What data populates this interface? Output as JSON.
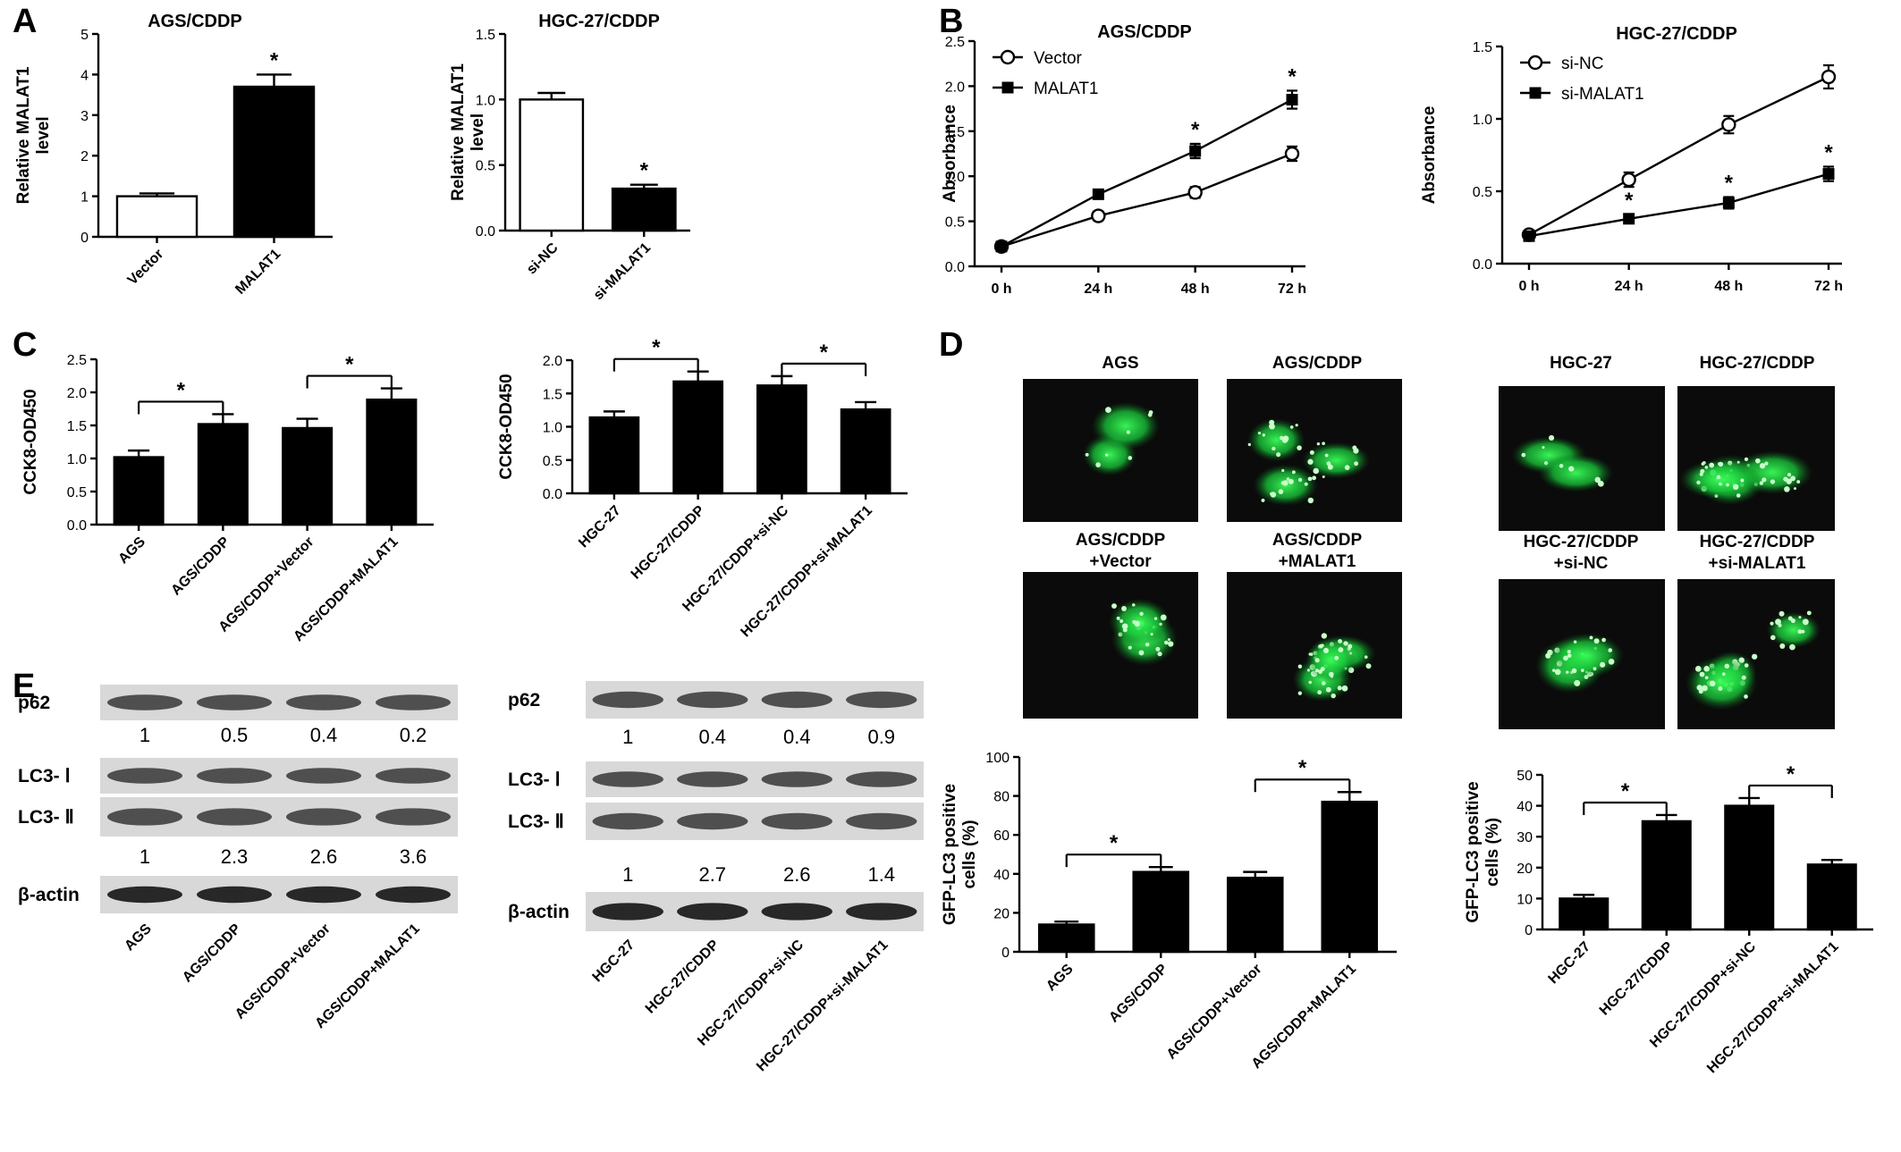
{
  "panel_letters": [
    "A",
    "B",
    "C",
    "D",
    "E"
  ],
  "chart_data": [
    {
      "id": "A1",
      "type": "bar",
      "title": "AGS/CDDP",
      "ylabel": "Relative MALAT1 level",
      "xlabel": "",
      "categories": [
        "Vector",
        "MALAT1"
      ],
      "values": [
        1.0,
        3.7
      ],
      "errors": [
        0.07,
        0.3
      ],
      "fills": [
        "#ffffff",
        "#000000"
      ],
      "ylim": [
        0,
        5
      ],
      "yticks": [
        "0",
        "1",
        "2",
        "3",
        "4",
        "5"
      ],
      "star_label": "*",
      "stars": [
        1
      ]
    },
    {
      "id": "A2",
      "type": "bar",
      "title": "HGC-27/CDDP",
      "ylabel": "Relative MALAT1 level",
      "xlabel": "",
      "categories": [
        "si-NC",
        "si-MALAT1"
      ],
      "values": [
        1.0,
        0.32
      ],
      "errors": [
        0.05,
        0.03
      ],
      "fills": [
        "#ffffff",
        "#000000"
      ],
      "ylim": [
        0,
        1.5
      ],
      "yticks": [
        "0.0",
        "0.5",
        "1.0",
        "1.5"
      ],
      "star_label": "*",
      "stars": [
        1
      ]
    },
    {
      "id": "B1",
      "type": "line",
      "title": "AGS/CDDP",
      "ylabel": "Absorbance",
      "xlabel": "",
      "categories": [
        "0 h",
        "24 h",
        "48 h",
        "72 h"
      ],
      "series": [
        {
          "name": "Vector",
          "values": [
            0.22,
            0.56,
            0.82,
            1.25
          ],
          "errors": [
            0.03,
            0.05,
            0.06,
            0.08
          ]
        },
        {
          "name": "MALAT1",
          "values": [
            0.22,
            0.8,
            1.28,
            1.85
          ],
          "errors": [
            0.03,
            0.05,
            0.08,
            0.1
          ]
        }
      ],
      "ylim": [
        0,
        2.5
      ],
      "yticks": [
        "0.0",
        "0.5",
        "1.0",
        "1.5",
        "2.0",
        "2.5"
      ],
      "legend_position": "top-left",
      "star_label": "*",
      "stars": [
        2,
        3
      ]
    },
    {
      "id": "B2",
      "type": "line",
      "title": "HGC-27/CDDP",
      "ylabel": "Absorbance",
      "xlabel": "",
      "categories": [
        "0 h",
        "24 h",
        "48 h",
        "72 h"
      ],
      "series": [
        {
          "name": "si-NC",
          "values": [
            0.2,
            0.58,
            0.96,
            1.29
          ],
          "errors": [
            0.02,
            0.05,
            0.06,
            0.08
          ]
        },
        {
          "name": "si-MALAT1",
          "values": [
            0.19,
            0.31,
            0.42,
            0.62
          ],
          "errors": [
            0.02,
            0.03,
            0.04,
            0.05
          ]
        }
      ],
      "ylim": [
        0,
        1.5
      ],
      "yticks": [
        "0.0",
        "0.5",
        "1.0",
        "1.5"
      ],
      "legend_position": "top-left",
      "star_label": "*",
      "stars": [
        1,
        2,
        3
      ]
    },
    {
      "id": "C1",
      "type": "bar",
      "title": "",
      "ylabel": "CCK8-OD450",
      "xlabel": "",
      "categories": [
        "AGS",
        "AGS/CDDP",
        "AGS/CDDP+Vector",
        "AGS/CDDP+MALAT1"
      ],
      "values": [
        1.02,
        1.52,
        1.46,
        1.89
      ],
      "errors": [
        0.1,
        0.15,
        0.14,
        0.17
      ],
      "ylim": [
        0,
        2.5
      ],
      "yticks": [
        "0.0",
        "0.5",
        "1.0",
        "1.5",
        "2.0",
        "2.5"
      ],
      "star_label": "*",
      "brackets": [
        [
          0,
          1
        ],
        [
          2,
          3
        ]
      ]
    },
    {
      "id": "C2",
      "type": "bar",
      "title": "",
      "ylabel": "CCK8-OD450",
      "xlabel": "",
      "categories": [
        "HGC-27",
        "HGC-27/CDDP",
        "HGC-27/CDDP+si-NC",
        "HGC-27/CDDP+si-MALAT1"
      ],
      "values": [
        1.14,
        1.68,
        1.62,
        1.26
      ],
      "errors": [
        0.09,
        0.15,
        0.14,
        0.11
      ],
      "ylim": [
        0,
        2.0
      ],
      "yticks": [
        "0.0",
        "0.5",
        "1.0",
        "1.5",
        "2.0"
      ],
      "star_label": "*",
      "brackets": [
        [
          0,
          1
        ],
        [
          2,
          3
        ]
      ]
    },
    {
      "id": "D1",
      "type": "bar",
      "title": "",
      "ylabel": "GFP-LC3 positive cells (%)",
      "xlabel": "",
      "categories": [
        "AGS",
        "AGS/CDDP",
        "AGS/CDDP+Vector",
        "AGS/CDDP+MALAT1"
      ],
      "values": [
        14,
        41,
        38,
        77
      ],
      "errors": [
        1.5,
        2.5,
        3.0,
        5.0
      ],
      "ylim": [
        0,
        100
      ],
      "yticks": [
        "0",
        "20",
        "40",
        "60",
        "80",
        "100"
      ],
      "star_label": "*",
      "brackets": [
        [
          0,
          1
        ],
        [
          2,
          3
        ]
      ]
    },
    {
      "id": "D2",
      "type": "bar",
      "title": "",
      "ylabel": "GFP-LC3 positive cells (%)",
      "xlabel": "",
      "categories": [
        "HGC-27",
        "HGC-27/CDDP",
        "HGC-27/CDDP+si-NC",
        "HGC-27/CDDP+si-MALAT1"
      ],
      "values": [
        10,
        35,
        40,
        21
      ],
      "errors": [
        1.2,
        2.0,
        2.5,
        1.5
      ],
      "ylim": [
        0,
        50
      ],
      "yticks": [
        "0",
        "10",
        "20",
        "30",
        "40",
        "50"
      ],
      "star_label": "*",
      "brackets": [
        [
          0,
          1
        ],
        [
          2,
          3
        ]
      ]
    }
  ],
  "microscopy": {
    "left": {
      "labels": [
        "AGS",
        "AGS/CDDP",
        "AGS/CDDP",
        "+Vector",
        "AGS/CDDP",
        "+MALAT1"
      ]
    },
    "right": {
      "labels": [
        "HGC-27",
        "HGC-27/CDDP",
        "HGC-27/CDDP",
        "+si-NC",
        "HGC-27/CDDP",
        "+si-MALAT1"
      ]
    },
    "fluorescence_color": "#22e04a"
  },
  "western_blots": [
    {
      "id": "E1",
      "rows": [
        {
          "label": "p62",
          "quant": [
            "1",
            "0.5",
            "0.4",
            "0.2"
          ]
        },
        {
          "label": "LC3- Ⅰ"
        },
        {
          "label": "LC3- Ⅱ",
          "quant": [
            "1",
            "2.3",
            "2.6",
            "3.6"
          ]
        },
        {
          "label": "β-actin"
        }
      ],
      "lanes": [
        "AGS",
        "AGS/CDDP",
        "AGS/CDDP+Vector",
        "AGS/CDDP+MALAT1"
      ]
    },
    {
      "id": "E2",
      "rows": [
        {
          "label": "p62",
          "quant": [
            "1",
            "0.4",
            "0.4",
            "0.9"
          ]
        },
        {
          "label": "LC3- Ⅰ"
        },
        {
          "label": "LC3- Ⅱ",
          "quant": [
            "1",
            "2.7",
            "2.6",
            "1.4"
          ]
        },
        {
          "label": "β-actin"
        }
      ],
      "lanes": [
        "HGC-27",
        "HGC-27/CDDP",
        "HGC-27/CDDP+si-NC",
        "HGC-27/CDDP+si-MALAT1"
      ]
    }
  ]
}
